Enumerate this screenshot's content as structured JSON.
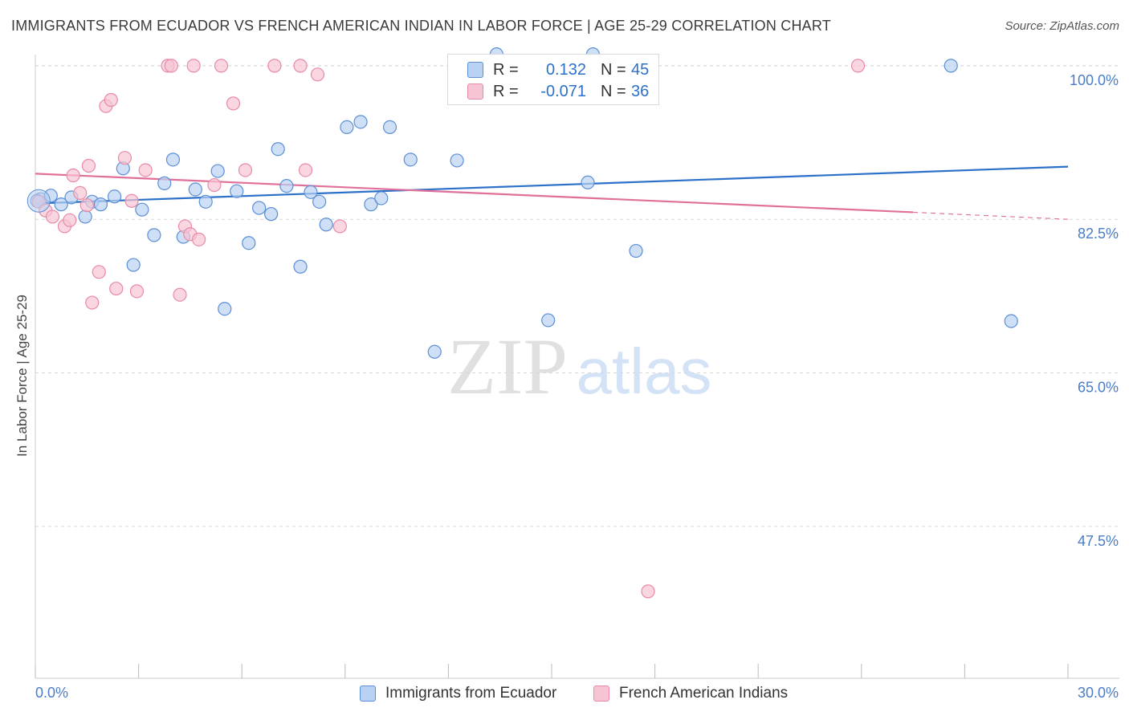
{
  "header": {
    "title": "IMMIGRANTS FROM ECUADOR VS FRENCH AMERICAN INDIAN IN LABOR FORCE | AGE 25-29 CORRELATION CHART",
    "source": "Source: ZipAtlas.com"
  },
  "watermark": {
    "zip": "ZIP",
    "atlas": "atlas"
  },
  "stats_legend": {
    "rows": [
      {
        "r_label": "R =",
        "r_value": "0.132",
        "n_label": "N =",
        "n_value": "45"
      },
      {
        "r_label": "R =",
        "r_value": "-0.071",
        "n_label": "N =",
        "n_value": "36"
      }
    ]
  },
  "bottom_legend": {
    "items": [
      "Immigrants from Ecuador",
      "French American Indians"
    ]
  },
  "colors": {
    "blue": "#5b8fd6",
    "blue_fill": "#b9d1f2",
    "blue_line": "#2b70c9",
    "pink": "#e88aa8",
    "pink_fill": "#f6c4d3",
    "pink_line": "#e0709a",
    "axis_text": "#4a7cc7",
    "grid": "#d8d8d8"
  },
  "chart_data": {
    "type": "scatter",
    "title": "IMMIGRANTS FROM ECUADOR VS FRENCH AMERICAN INDIAN IN LABOR FORCE | AGE 25-29 CORRELATION CHART",
    "xlabel": "",
    "ylabel": "In Labor Force | Age 25-29",
    "xlim": [
      0,
      30
    ],
    "ylim": [
      30.2,
      102.0
    ],
    "x_tick_labels": [
      "0.0%",
      "30.0%"
    ],
    "y_ticks": [
      100.0,
      82.5,
      65.0,
      47.5
    ],
    "y_tick_labels": [
      "100.0%",
      "82.5%",
      "65.0%",
      "47.5%"
    ],
    "grid": true,
    "legend_position": "bottom",
    "series": [
      {
        "name": "Immigrants from Ecuador",
        "r": 0.132,
        "n": 45,
        "trend": [
          [
            0,
            84.3
          ],
          [
            30,
            88.5
          ]
        ],
        "points": [
          [
            0.15,
            84.8
          ],
          [
            0.45,
            85.2
          ],
          [
            0.75,
            84.2
          ],
          [
            1.05,
            85.0
          ],
          [
            1.45,
            82.8
          ],
          [
            1.65,
            84.5
          ],
          [
            1.9,
            84.2
          ],
          [
            2.3,
            85.1
          ],
          [
            2.55,
            88.3
          ],
          [
            2.85,
            77.3
          ],
          [
            3.1,
            83.6
          ],
          [
            3.45,
            80.7
          ],
          [
            3.75,
            86.6
          ],
          [
            4.0,
            89.3
          ],
          [
            4.3,
            80.5
          ],
          [
            4.65,
            85.9
          ],
          [
            4.95,
            84.5
          ],
          [
            5.3,
            88.0
          ],
          [
            5.5,
            72.3
          ],
          [
            5.85,
            85.7
          ],
          [
            6.2,
            79.8
          ],
          [
            6.5,
            83.8
          ],
          [
            6.85,
            83.1
          ],
          [
            7.05,
            90.5
          ],
          [
            7.3,
            86.3
          ],
          [
            7.7,
            77.1
          ],
          [
            8.0,
            85.6
          ],
          [
            8.25,
            84.5
          ],
          [
            8.45,
            81.9
          ],
          [
            9.05,
            93.0
          ],
          [
            9.45,
            93.6
          ],
          [
            9.75,
            84.2
          ],
          [
            10.05,
            84.9
          ],
          [
            10.3,
            93.0
          ],
          [
            10.9,
            89.3
          ],
          [
            11.6,
            67.4
          ],
          [
            12.25,
            89.2
          ],
          [
            13.4,
            101.3
          ],
          [
            14.9,
            71.0
          ],
          [
            16.05,
            86.7
          ],
          [
            16.2,
            101.3
          ],
          [
            17.45,
            78.9
          ],
          [
            26.6,
            100.0
          ],
          [
            28.35,
            70.9
          ],
          [
            0.05,
            84.6
          ]
        ]
      },
      {
        "name": "French American Indians",
        "r": -0.071,
        "n": 36,
        "trend": [
          [
            0,
            87.7
          ],
          [
            25.5,
            83.3
          ]
        ],
        "trend_dashed": [
          [
            25.5,
            83.3
          ],
          [
            30,
            82.5
          ]
        ],
        "points": [
          [
            0.1,
            84.5
          ],
          [
            0.3,
            83.5
          ],
          [
            0.5,
            82.8
          ],
          [
            0.85,
            81.7
          ],
          [
            1.0,
            82.4
          ],
          [
            1.1,
            87.5
          ],
          [
            1.3,
            85.5
          ],
          [
            1.5,
            84.1
          ],
          [
            1.55,
            88.6
          ],
          [
            1.65,
            73.0
          ],
          [
            1.85,
            76.5
          ],
          [
            2.05,
            95.4
          ],
          [
            2.2,
            96.1
          ],
          [
            2.35,
            74.6
          ],
          [
            2.6,
            89.5
          ],
          [
            2.8,
            84.6
          ],
          [
            2.95,
            74.3
          ],
          [
            3.2,
            88.1
          ],
          [
            3.85,
            100.0
          ],
          [
            3.95,
            100.0
          ],
          [
            4.2,
            73.9
          ],
          [
            4.35,
            81.7
          ],
          [
            4.5,
            80.8
          ],
          [
            4.6,
            100.0
          ],
          [
            4.75,
            80.2
          ],
          [
            5.2,
            86.4
          ],
          [
            5.4,
            100.0
          ],
          [
            5.75,
            95.7
          ],
          [
            6.1,
            88.1
          ],
          [
            6.95,
            100.0
          ],
          [
            7.7,
            100.0
          ],
          [
            7.85,
            88.1
          ],
          [
            8.2,
            99.0
          ],
          [
            8.85,
            81.7
          ],
          [
            17.8,
            40.1
          ],
          [
            23.9,
            100.0
          ]
        ]
      }
    ]
  }
}
